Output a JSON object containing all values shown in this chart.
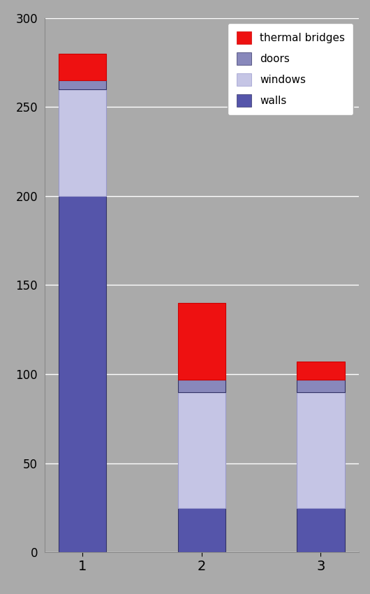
{
  "categories": [
    "1",
    "2",
    "3"
  ],
  "walls": [
    200,
    25,
    25
  ],
  "windows": [
    60,
    65,
    65
  ],
  "doors": [
    5,
    7,
    7
  ],
  "thermal_bridges": [
    15,
    43,
    10
  ],
  "color_walls": "#5555aa",
  "color_windows": "#c5c5e5",
  "color_doors": "#8888bb",
  "color_thermal": "#ee1111",
  "ylim": [
    0,
    300
  ],
  "yticks": [
    0,
    50,
    100,
    150,
    200,
    250,
    300
  ],
  "bg_color": "#aaaaaa",
  "plot_bg_color": "#aaaaaa",
  "bar_width": 0.4,
  "legend_labels": [
    "thermal bridges",
    "doors",
    "windows",
    "walls"
  ],
  "figsize": [
    5.3,
    8.51
  ],
  "dpi": 100
}
